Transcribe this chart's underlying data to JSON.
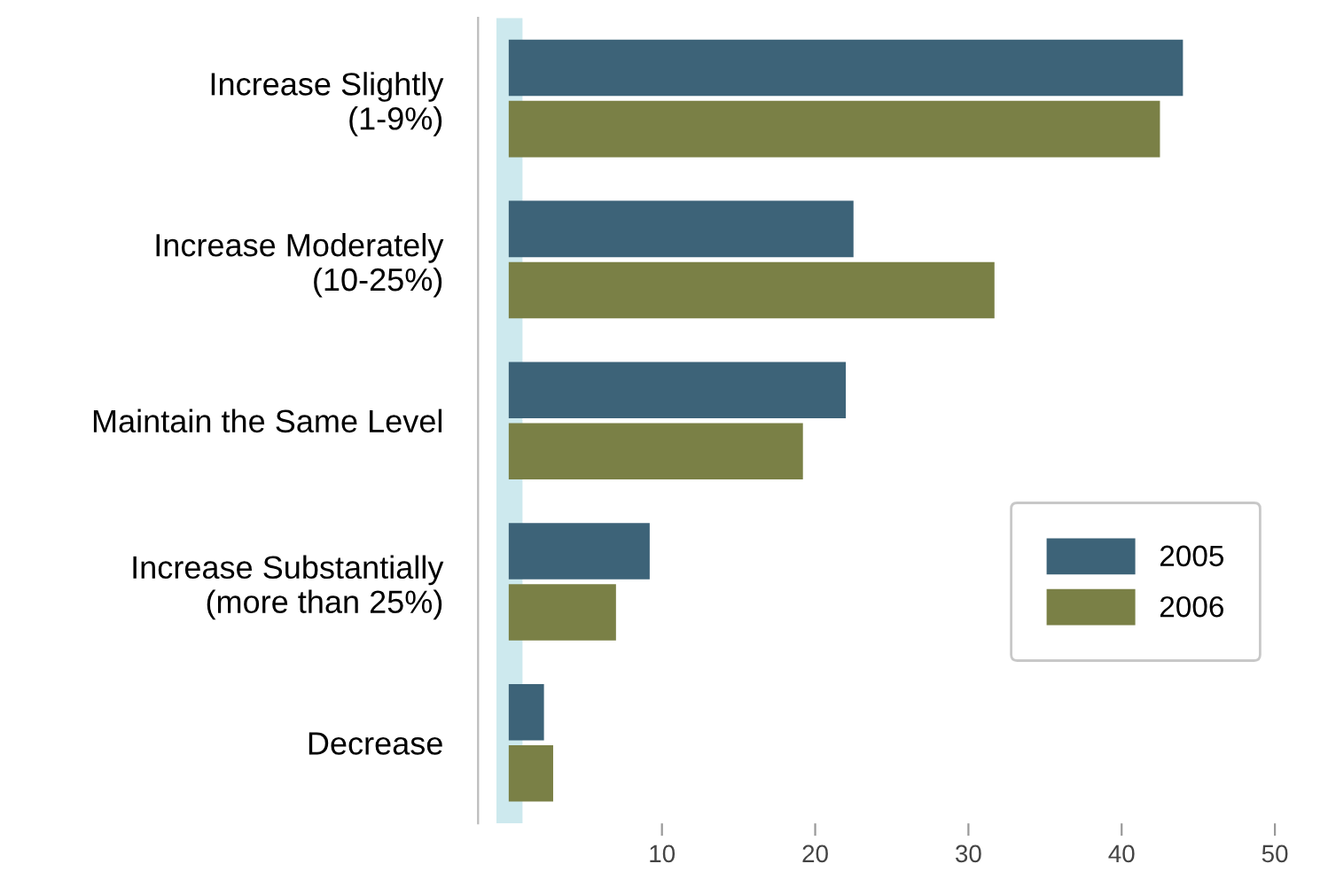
{
  "chart_data": {
    "type": "bar",
    "orientation": "horizontal",
    "categories": [
      "Increase Slightly\n(1-9%)",
      "Increase Moderately\n(10-25%)",
      "Maintain the Same Level",
      "Increase Substantially\n(more than 25%)",
      "Decrease"
    ],
    "series": [
      {
        "name": "2005",
        "color": "#3d6378",
        "values": [
          44,
          22.5,
          22,
          9.2,
          2.3
        ]
      },
      {
        "name": "2006",
        "color": "#7a8046",
        "values": [
          42.5,
          31.7,
          19.2,
          7,
          2.9
        ]
      }
    ],
    "xlim": [
      -2,
      50
    ],
    "xticks": [
      10,
      20,
      30,
      40,
      50
    ],
    "bands": [
      {
        "axis": "x",
        "from": -0.8,
        "to": 0.9,
        "color": "#cde9ee"
      }
    ],
    "grid": false,
    "legend": "right"
  }
}
